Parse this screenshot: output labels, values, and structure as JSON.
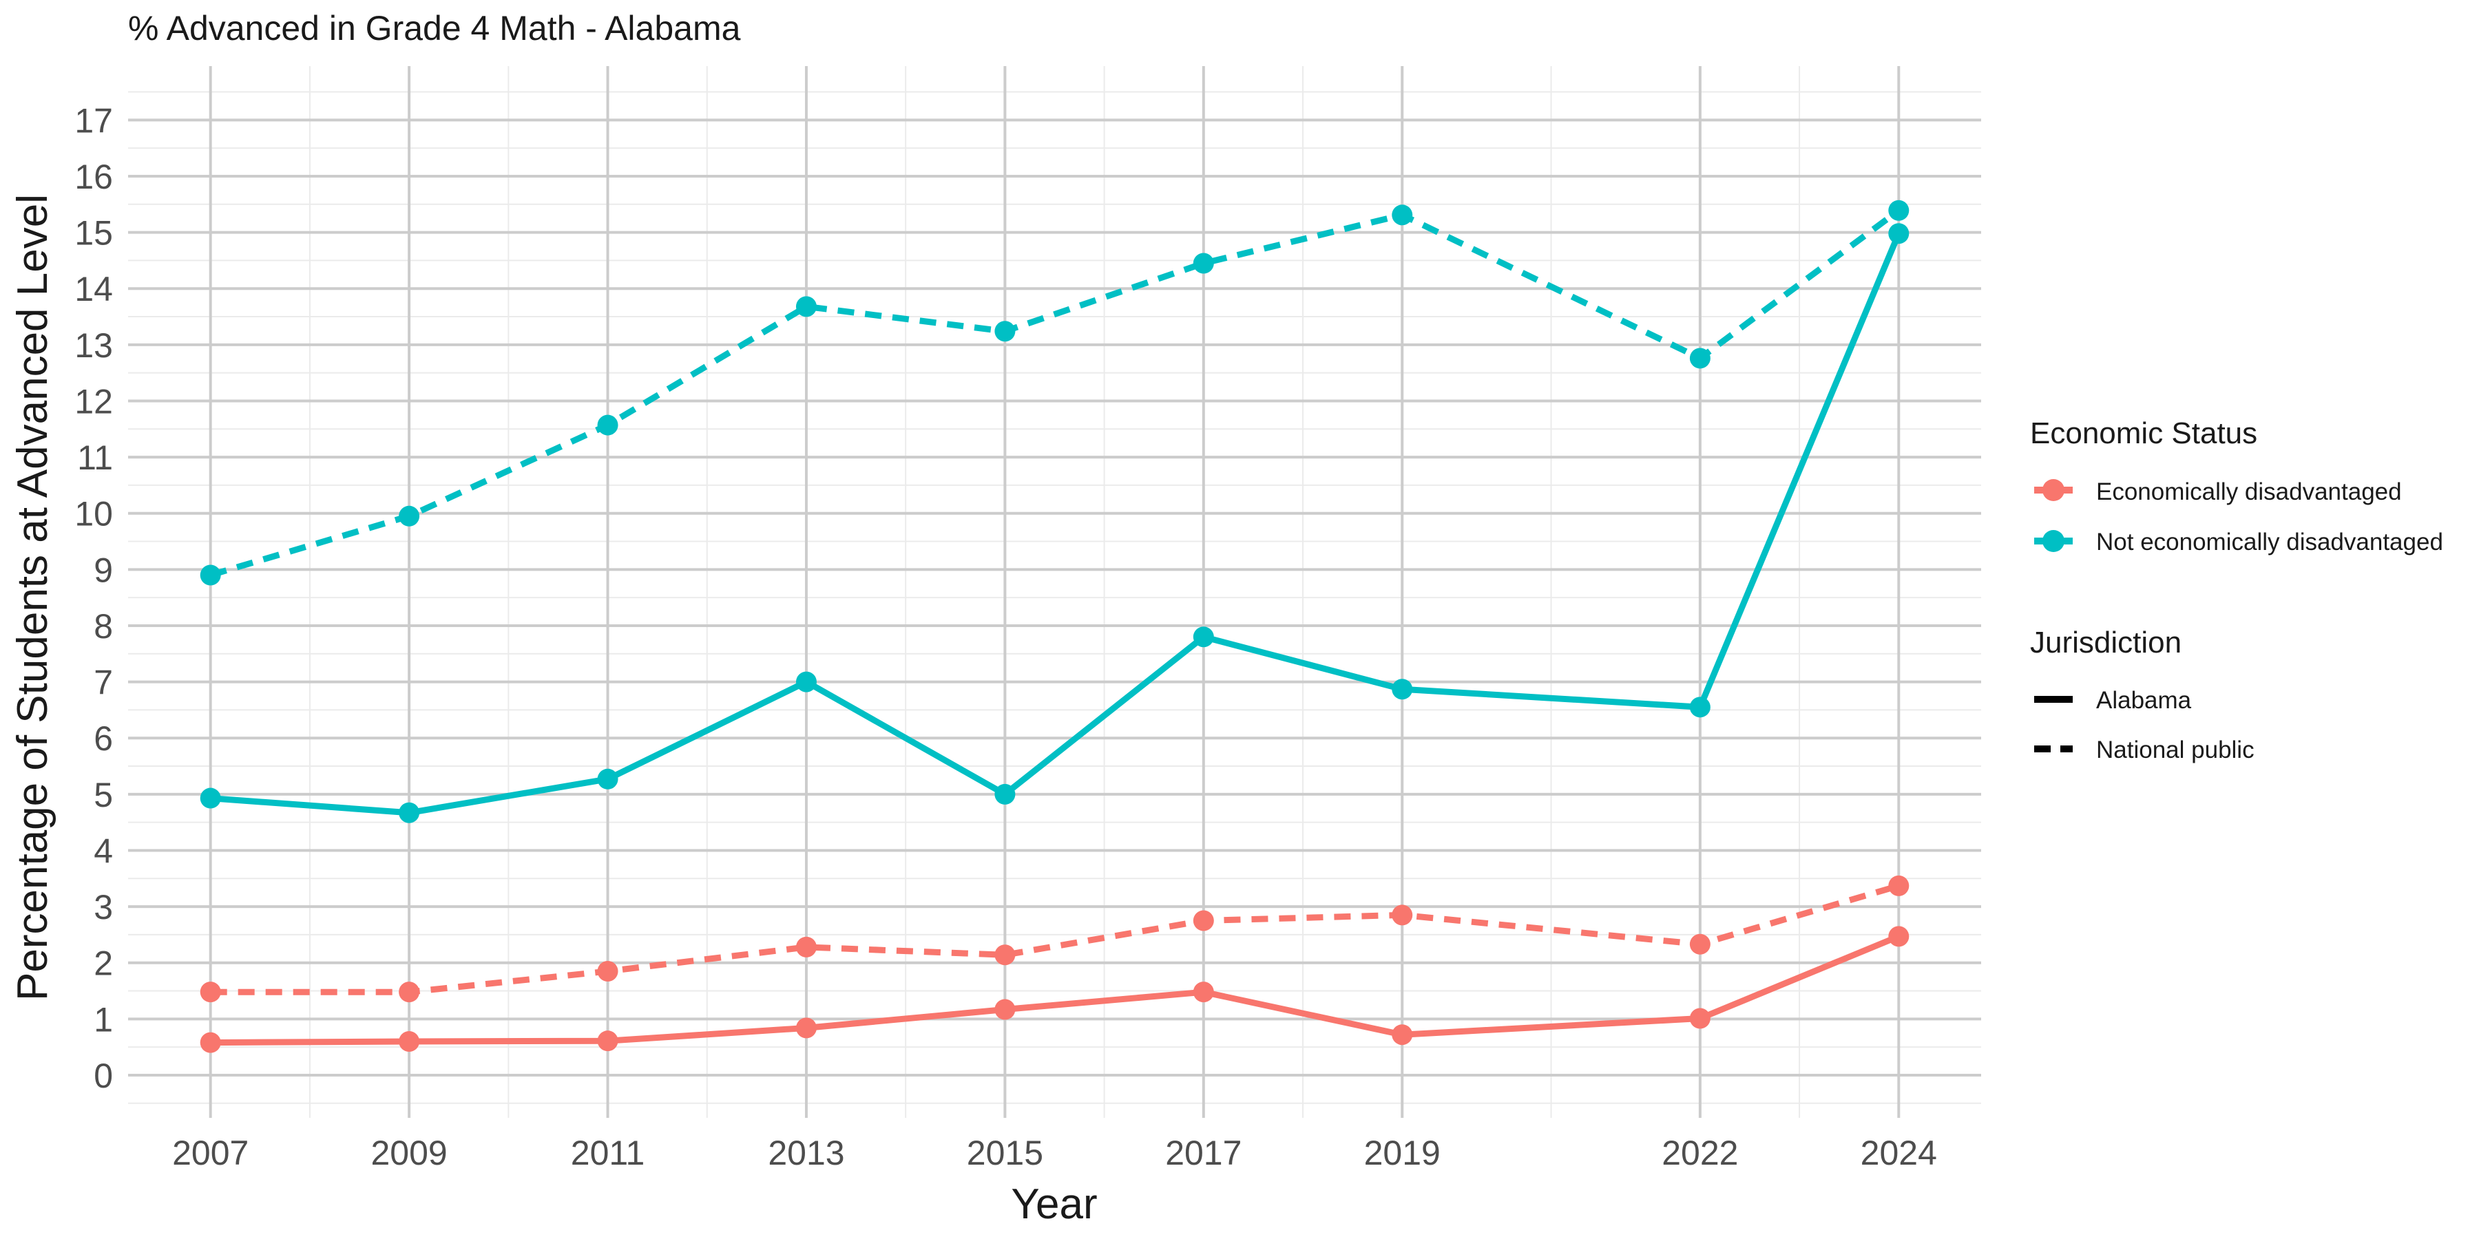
{
  "chart_data": {
    "type": "line",
    "title": "% Advanced in Grade 4 Math - Alabama",
    "xlabel": "Year",
    "ylabel": "Percentage of Students at Advanced Level",
    "x": [
      2007,
      2009,
      2011,
      2013,
      2015,
      2017,
      2019,
      2022,
      2024
    ],
    "x_ticks": [
      "2007",
      "2009",
      "2011",
      "2013",
      "2015",
      "2017",
      "2019",
      "2022",
      "2024"
    ],
    "xlim": [
      2006.17,
      2024.83
    ],
    "ylim": [
      -0.76,
      17.96
    ],
    "y_ticks": [
      0,
      1,
      2,
      3,
      4,
      5,
      6,
      7,
      8,
      9,
      10,
      11,
      12,
      13,
      14,
      15,
      16,
      17
    ],
    "y_tick_labels": [
      "0",
      "1",
      "2",
      "3",
      "4",
      "5",
      "6",
      "7",
      "8",
      "9",
      "10",
      "11",
      "12",
      "13",
      "14",
      "15",
      "16",
      "17"
    ],
    "grid": true,
    "legend_position": "right",
    "color_legend": {
      "title": "Economic Status",
      "items": [
        {
          "label": "Economically disadvantaged",
          "color": "#F8766D"
        },
        {
          "label": "Not economically disadvantaged",
          "color": "#00BFC4"
        }
      ]
    },
    "linetype_legend": {
      "title": "Jurisdiction",
      "items": [
        {
          "label": "Alabama",
          "dash": "solid"
        },
        {
          "label": "National public",
          "dash": "dashed"
        }
      ]
    },
    "series": [
      {
        "economic_status": "Not economically disadvantaged",
        "jurisdiction": "National public",
        "color": "#00BFC4",
        "dash": "dashed",
        "values": [
          8.9,
          9.95,
          11.57,
          13.68,
          13.24,
          14.45,
          15.31,
          12.76,
          15.39
        ]
      },
      {
        "economic_status": "Not economically disadvantaged",
        "jurisdiction": "Alabama",
        "color": "#00BFC4",
        "dash": "solid",
        "values": [
          4.93,
          4.67,
          5.27,
          7.0,
          5.0,
          7.8,
          6.87,
          6.55,
          14.98
        ]
      },
      {
        "economic_status": "Economically disadvantaged",
        "jurisdiction": "National public",
        "color": "#F8766D",
        "dash": "dashed",
        "values": [
          1.48,
          1.48,
          1.85,
          2.28,
          2.14,
          2.75,
          2.85,
          2.33,
          3.37
        ]
      },
      {
        "economic_status": "Economically disadvantaged",
        "jurisdiction": "Alabama",
        "color": "#F8766D",
        "dash": "solid",
        "values": [
          0.58,
          0.6,
          0.61,
          0.84,
          1.17,
          1.48,
          0.72,
          1.01,
          2.47
        ]
      }
    ]
  }
}
